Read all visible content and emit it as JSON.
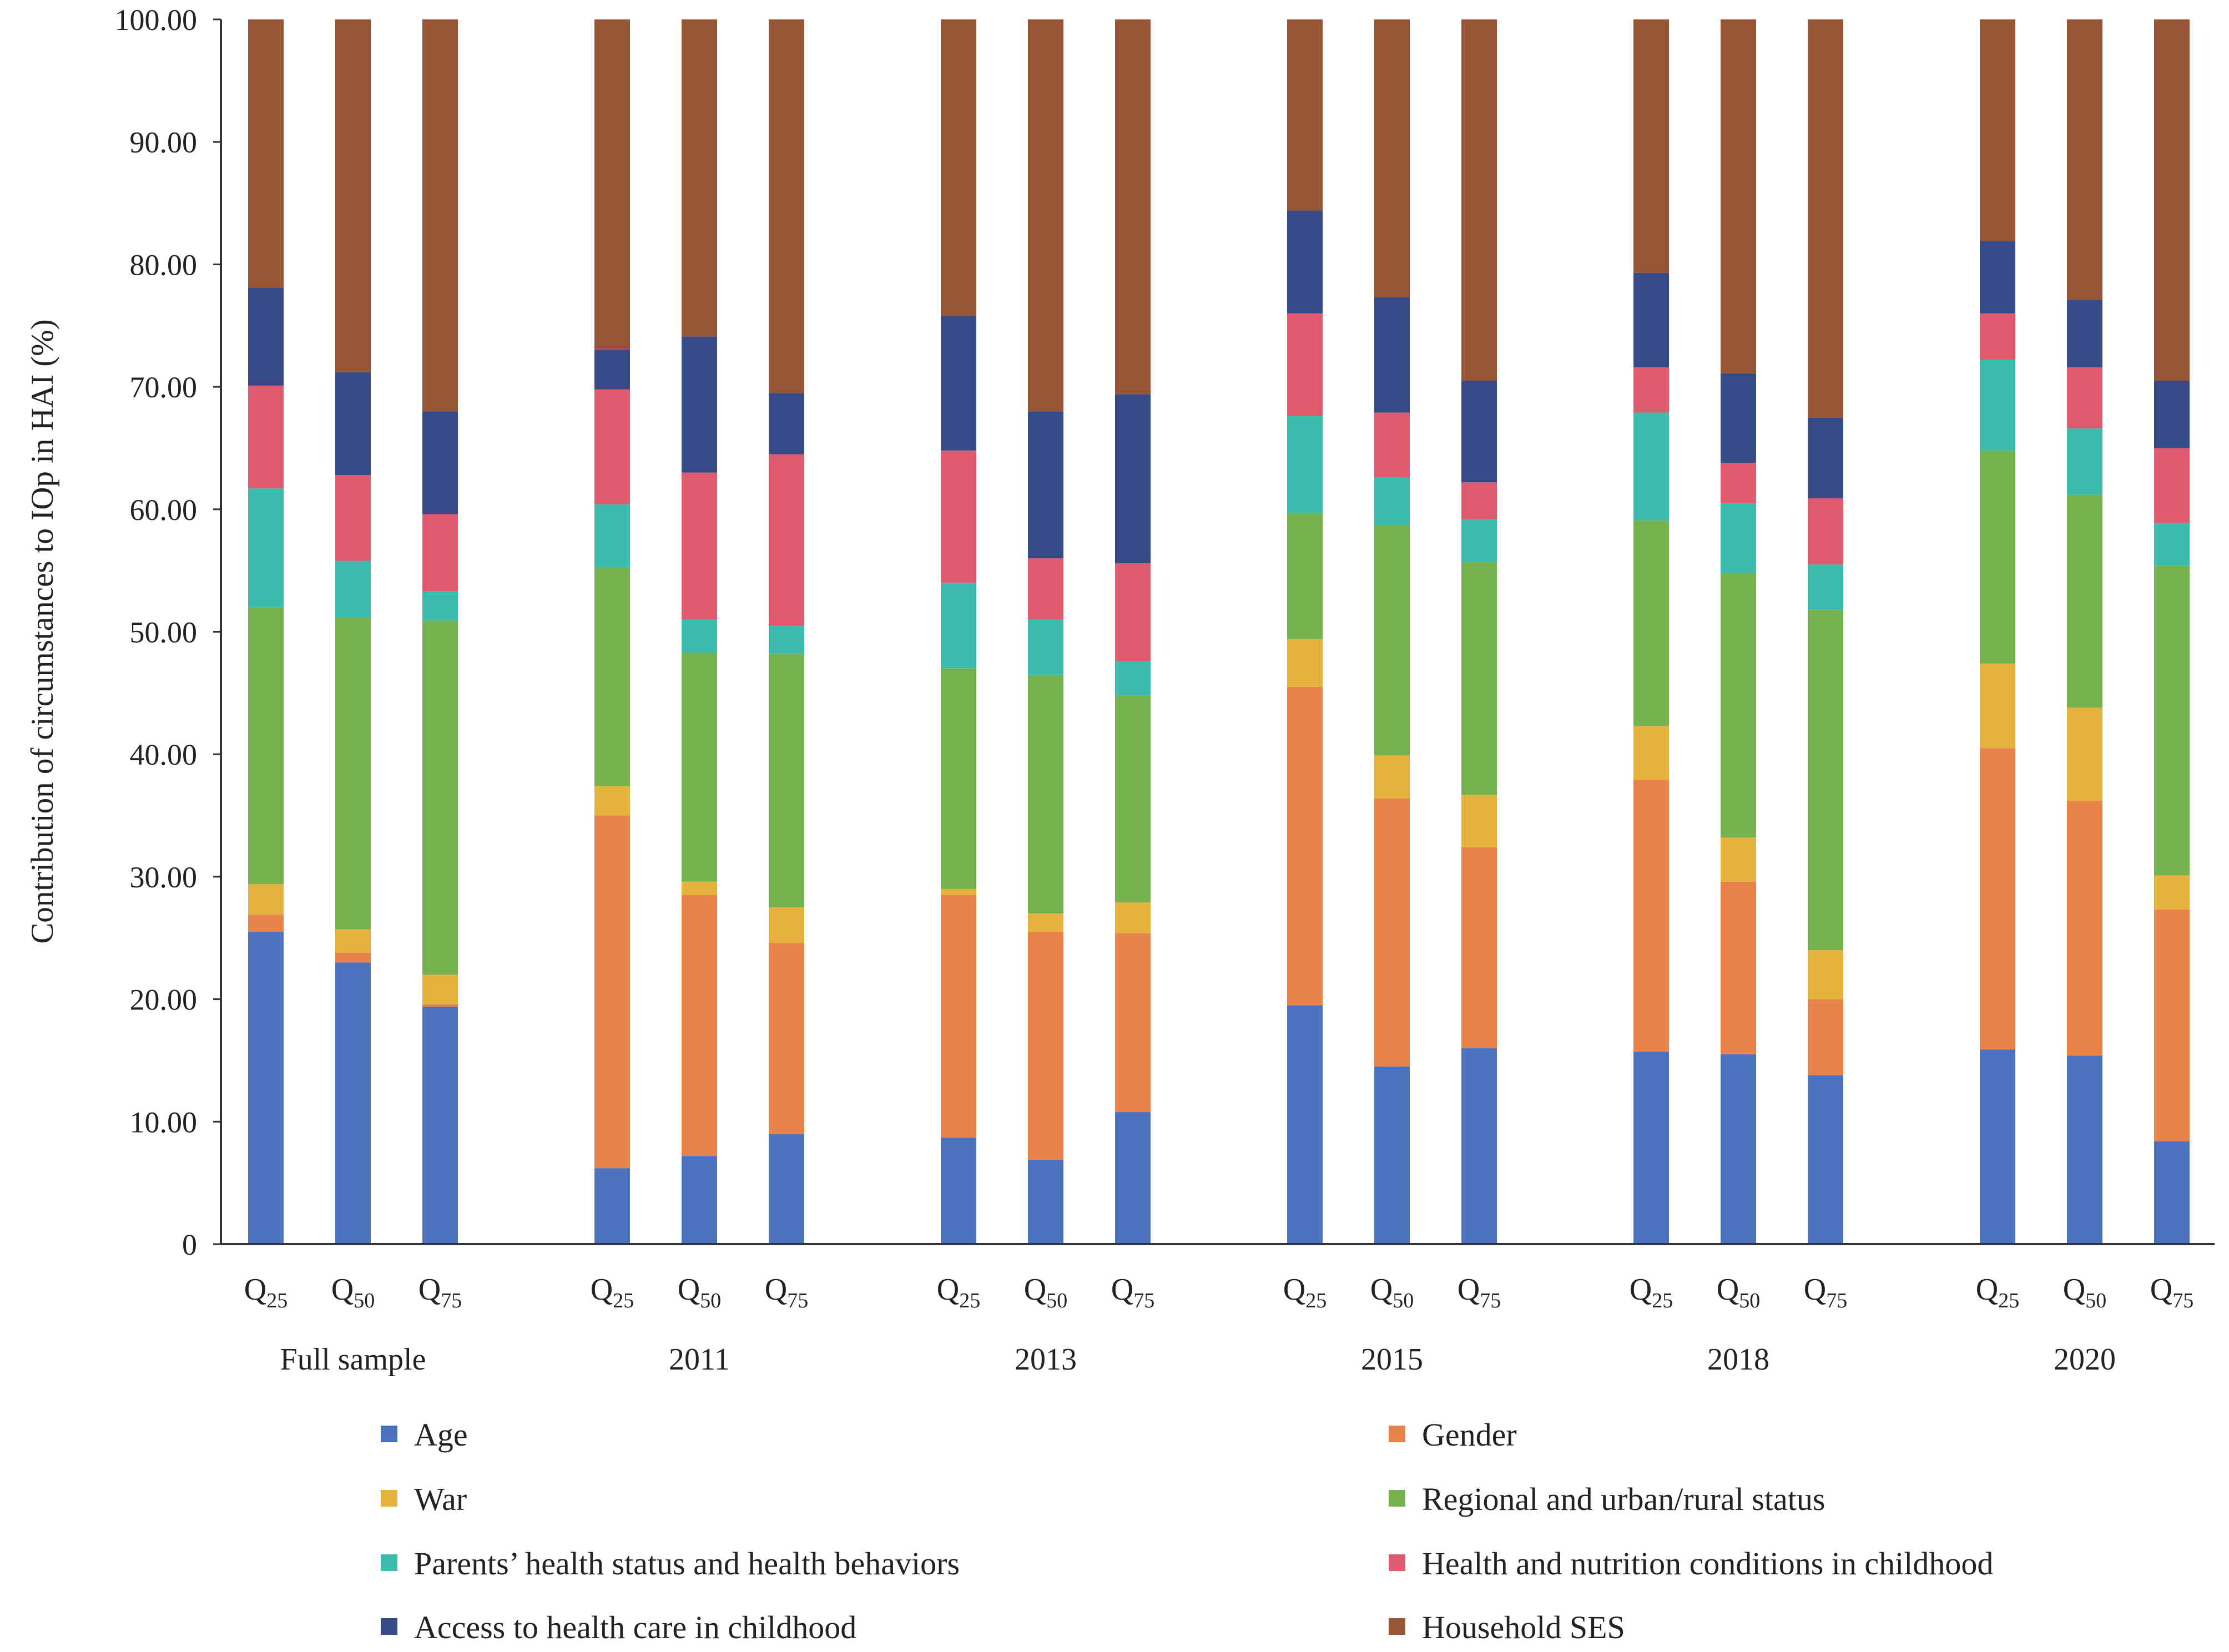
{
  "chart_data": {
    "type": "bar",
    "stacked": true,
    "ylabel": "Contribution of circumstances to IOp in HAI (%)",
    "ylim": [
      0,
      100
    ],
    "yticks": [
      "0",
      "10.00",
      "20.00",
      "30.00",
      "40.00",
      "50.00",
      "60.00",
      "70.00",
      "80.00",
      "90.00",
      "100.00"
    ],
    "grid": false,
    "legend_position": "bottom",
    "groups": [
      {
        "label": "Full sample",
        "bars": [
          {
            "q": "Q",
            "sub": "25"
          },
          {
            "q": "Q",
            "sub": "50"
          },
          {
            "q": "Q",
            "sub": "75"
          }
        ]
      },
      {
        "label": "2011",
        "bars": [
          {
            "q": "Q",
            "sub": "25"
          },
          {
            "q": "Q",
            "sub": "50"
          },
          {
            "q": "Q",
            "sub": "75"
          }
        ]
      },
      {
        "label": "2013",
        "bars": [
          {
            "q": "Q",
            "sub": "25"
          },
          {
            "q": "Q",
            "sub": "50"
          },
          {
            "q": "Q",
            "sub": "75"
          }
        ]
      },
      {
        "label": "2015",
        "bars": [
          {
            "q": "Q",
            "sub": "25"
          },
          {
            "q": "Q",
            "sub": "50"
          },
          {
            "q": "Q",
            "sub": "75"
          }
        ]
      },
      {
        "label": "2018",
        "bars": [
          {
            "q": "Q",
            "sub": "25"
          },
          {
            "q": "Q",
            "sub": "50"
          },
          {
            "q": "Q",
            "sub": "75"
          }
        ]
      },
      {
        "label": "2020",
        "bars": [
          {
            "q": "Q",
            "sub": "25"
          },
          {
            "q": "Q",
            "sub": "50"
          },
          {
            "q": "Q",
            "sub": "75"
          }
        ]
      }
    ],
    "series": [
      {
        "name": "Age",
        "color": "#4e73be",
        "values": [
          25.5,
          23.0,
          19.4,
          6.2,
          7.2,
          9.0,
          8.7,
          6.9,
          10.8,
          19.5,
          14.5,
          16.0,
          15.7,
          15.5,
          13.8,
          15.9,
          15.4,
          8.4
        ]
      },
      {
        "name": "Gender",
        "color": "#e8844a",
        "values": [
          1.4,
          0.8,
          0.2,
          28.8,
          21.3,
          15.6,
          19.8,
          18.6,
          14.6,
          26.0,
          21.9,
          16.4,
          22.2,
          14.1,
          6.2,
          24.6,
          20.8,
          18.9
        ]
      },
      {
        "name": "War",
        "color": "#e7b13e",
        "values": [
          2.5,
          1.9,
          2.4,
          2.4,
          1.1,
          2.9,
          0.5,
          1.5,
          2.5,
          3.9,
          3.5,
          4.3,
          4.4,
          3.6,
          4.0,
          6.9,
          7.6,
          2.8
        ]
      },
      {
        "name": "Regional and urban/rural status",
        "color": "#76b350",
        "values": [
          22.6,
          25.5,
          28.9,
          17.8,
          18.7,
          20.7,
          18.0,
          19.5,
          16.9,
          10.3,
          18.8,
          19.0,
          16.8,
          21.6,
          27.8,
          17.4,
          17.4,
          25.3
        ]
      },
      {
        "name": "Parents’ health status and health behaviors",
        "color": "#3cbcad",
        "values": [
          9.7,
          4.6,
          2.4,
          5.2,
          2.7,
          2.3,
          7.0,
          4.5,
          2.8,
          7.9,
          3.9,
          3.5,
          8.8,
          5.7,
          3.7,
          7.4,
          5.4,
          3.5
        ]
      },
      {
        "name": "Health and nutrition conditions in childhood",
        "color": "#e05a6e",
        "values": [
          8.4,
          7.0,
          6.3,
          9.4,
          12.0,
          14.0,
          10.8,
          5.0,
          8.0,
          8.4,
          5.3,
          3.0,
          3.7,
          3.3,
          5.4,
          3.8,
          5.0,
          6.1
        ]
      },
      {
        "name": "Access to health care in childhood",
        "color": "#354a86",
        "values": [
          8.0,
          8.4,
          8.4,
          3.2,
          11.1,
          5.0,
          11.0,
          12.0,
          13.8,
          8.4,
          9.4,
          8.3,
          7.7,
          7.3,
          6.6,
          5.9,
          5.5,
          5.5
        ]
      },
      {
        "name": "Household SES",
        "color": "#985536",
        "values": [
          21.9,
          28.8,
          32.0,
          27.2,
          25.9,
          30.5,
          24.2,
          32.0,
          30.6,
          15.6,
          22.7,
          29.5,
          20.7,
          29.1,
          32.5,
          18.1,
          22.9,
          29.5
        ]
      }
    ]
  }
}
